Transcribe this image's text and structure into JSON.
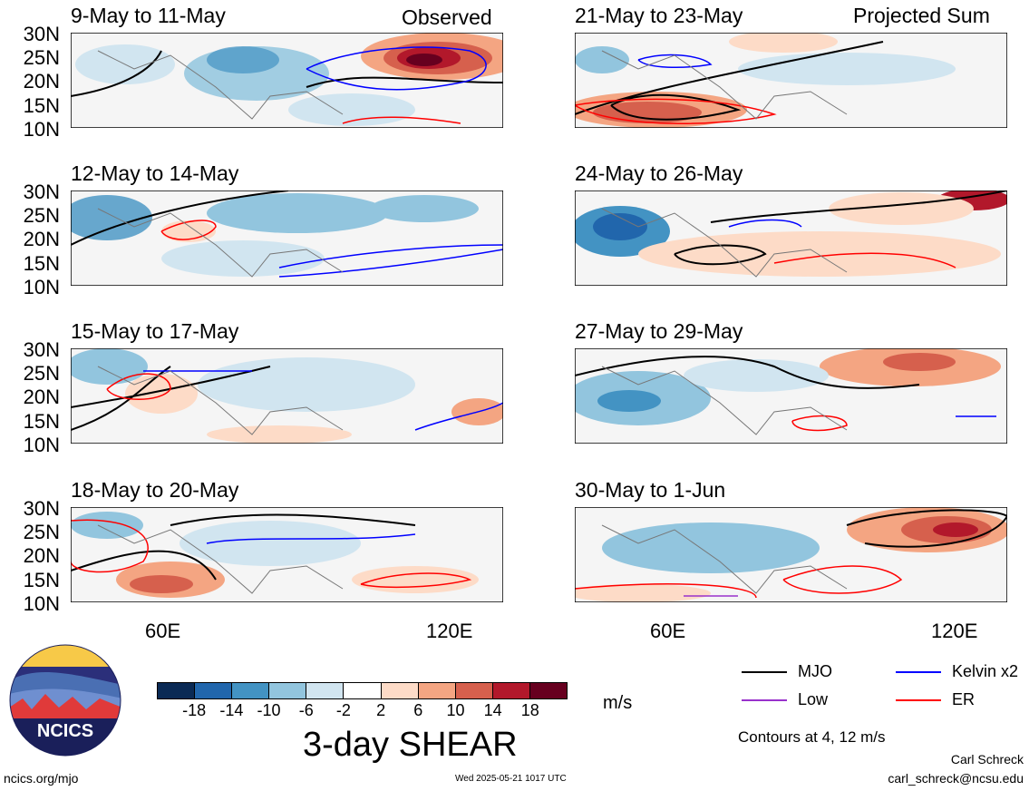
{
  "columns": {
    "left_tag": "Observed",
    "right_tag": "Projected Sum"
  },
  "panels_left": [
    {
      "date": "9-May to 11-May"
    },
    {
      "date": "12-May to 14-May"
    },
    {
      "date": "15-May to 17-May"
    },
    {
      "date": "18-May to 20-May"
    }
  ],
  "panels_right": [
    {
      "date": "21-May to 23-May"
    },
    {
      "date": "24-May to 26-May"
    },
    {
      "date": "27-May to 29-May"
    },
    {
      "date": "30-May to 1-Jun"
    }
  ],
  "lat_labels": [
    "30N",
    "25N",
    "20N",
    "15N",
    "10N"
  ],
  "lon_labels": [
    "60E",
    "120E"
  ],
  "colorbar": {
    "title": "3-day SHEAR",
    "units": "m/s",
    "colors": [
      "#0a2a55",
      "#2166ac",
      "#4393c3",
      "#92c5de",
      "#d1e5f0",
      "#ffffff",
      "#fddbc7",
      "#f4a582",
      "#d6604d",
      "#b2182b",
      "#67001f"
    ],
    "tick_labels": [
      "-18",
      "-14",
      "-10",
      "-6",
      "-2",
      "2",
      "6",
      "10",
      "14",
      "18"
    ]
  },
  "legend": {
    "items": [
      {
        "label": "MJO",
        "color": "#000000"
      },
      {
        "label": "Kelvin x2",
        "color": "#0000ff"
      },
      {
        "label": "Low",
        "color": "#9932cc"
      },
      {
        "label": "ER",
        "color": "#ff0000"
      }
    ],
    "note": "Contours at 4, 12 m/s"
  },
  "logo": {
    "text": "NCICS"
  },
  "footer": {
    "url": "ncics.org/mjo",
    "timestamp": "Wed 2025-05-21 1017 UTC",
    "author": "Carl Schreck",
    "email": "carl_schreck@ncsu.edu"
  }
}
